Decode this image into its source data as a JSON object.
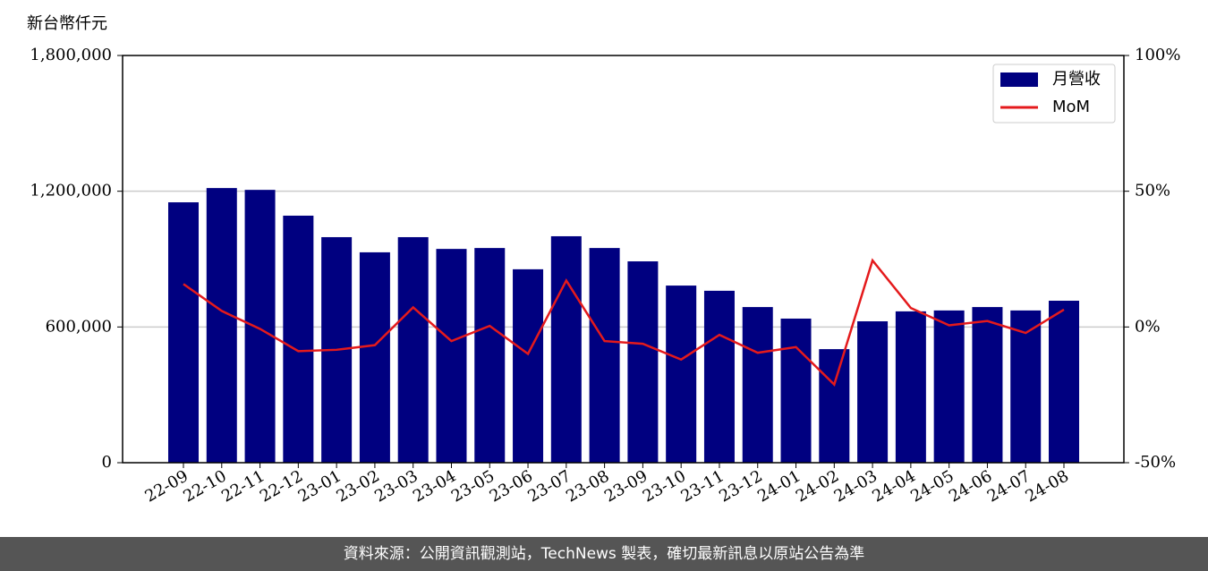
{
  "chart_data": {
    "type": "bar",
    "y_label": "新台幣仟元",
    "categories": [
      "22-09",
      "22-10",
      "22-11",
      "22-12",
      "23-01",
      "23-02",
      "23-03",
      "23-04",
      "23-05",
      "23-06",
      "23-07",
      "23-08",
      "23-09",
      "23-10",
      "23-11",
      "23-12",
      "24-01",
      "24-02",
      "24-03",
      "24-04",
      "24-05",
      "24-06",
      "24-07",
      "24-08"
    ],
    "series": [
      {
        "name": "月營收",
        "type": "bar",
        "color": "#000080",
        "values": [
          1151000,
          1214000,
          1206000,
          1092000,
          997000,
          930000,
          997000,
          945000,
          949000,
          855000,
          1001000,
          949000,
          890000,
          783000,
          760000,
          688000,
          637000,
          502000,
          625000,
          669000,
          673000,
          688000,
          673000,
          716000
        ]
      },
      {
        "name": "MoM",
        "type": "line",
        "axis": "y2",
        "color": "#e41a1c",
        "values": [
          15.8,
          5.9,
          -0.7,
          -8.9,
          -8.4,
          -6.7,
          7.2,
          -5.2,
          0.4,
          -9.9,
          17.1,
          -5.2,
          -6.2,
          -12.0,
          -2.9,
          -9.5,
          -7.4,
          -21.2,
          24.5,
          7.0,
          0.6,
          2.2,
          -2.2,
          6.4
        ]
      }
    ],
    "ylim": [
      0,
      1800000
    ],
    "yticks": [
      0,
      {
        "value": 600000,
        "label": "600,000"
      },
      {
        "value": 1200000,
        "label": "1,200,000"
      },
      {
        "value": 1800000,
        "label": "1,800,000"
      }
    ],
    "y2lim": [
      -50,
      100
    ],
    "y2ticks": [
      {
        "value": -50,
        "label": "-50%"
      },
      {
        "value": 0,
        "label": "0%"
      },
      {
        "value": 50,
        "label": "50%"
      },
      {
        "value": 100,
        "label": "100%"
      }
    ],
    "grid": true,
    "legend": "upper right"
  },
  "footer": "資料來源：公開資訊觀測站，TechNews 製表，確切最新訊息以原站公告為準"
}
